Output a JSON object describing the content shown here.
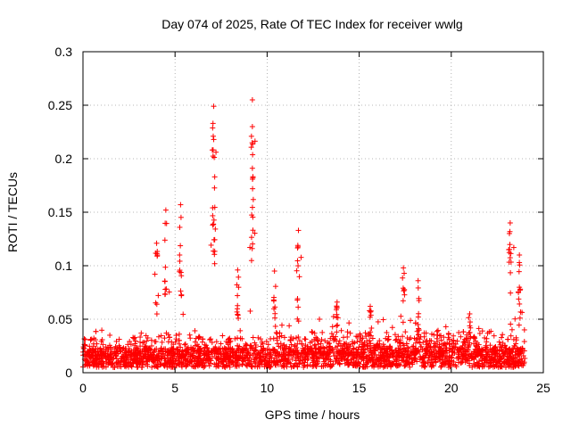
{
  "chart_data": {
    "type": "scatter",
    "title": "Day 074 of 2025, Rate Of TEC Index for receiver wwlg",
    "xlabel": "GPS time / hours",
    "ylabel": "ROTI / TECUs",
    "xlim": [
      0,
      25
    ],
    "ylim": [
      0,
      0.3
    ],
    "xticks": [
      0,
      5,
      10,
      15,
      20,
      25
    ],
    "xtick_labels": [
      "0",
      "5",
      "10",
      "15",
      "20",
      "25"
    ],
    "yticks": [
      0,
      0.05,
      0.1,
      0.15,
      0.2,
      0.25,
      0.3
    ],
    "ytick_labels": [
      "0",
      "0.05",
      "0.1",
      "0.15",
      "0.2",
      "0.25",
      "0.3"
    ],
    "grid": true,
    "marker": "+",
    "color": "#ff0000",
    "series": [
      {
        "name": "ROTI",
        "peaks": [
          {
            "x": 4.0,
            "y": 0.121
          },
          {
            "x": 4.5,
            "y": 0.152
          },
          {
            "x": 5.3,
            "y": 0.157
          },
          {
            "x": 7.1,
            "y": 0.249
          },
          {
            "x": 7.1,
            "y": 0.218
          },
          {
            "x": 8.4,
            "y": 0.096
          },
          {
            "x": 9.2,
            "y": 0.255
          },
          {
            "x": 9.2,
            "y": 0.23
          },
          {
            "x": 10.4,
            "y": 0.095
          },
          {
            "x": 11.7,
            "y": 0.133
          },
          {
            "x": 13.8,
            "y": 0.066
          },
          {
            "x": 15.6,
            "y": 0.062
          },
          {
            "x": 17.4,
            "y": 0.098
          },
          {
            "x": 18.2,
            "y": 0.086
          },
          {
            "x": 21.0,
            "y": 0.055
          },
          {
            "x": 23.2,
            "y": 0.14
          },
          {
            "x": 23.7,
            "y": 0.11
          }
        ]
      }
    ]
  }
}
